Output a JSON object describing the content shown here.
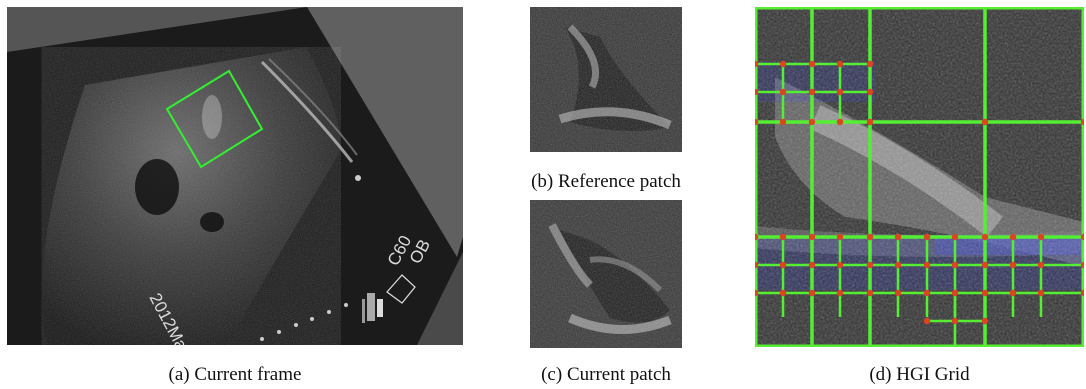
{
  "figure": {
    "captions": {
      "a": "(a) Current frame",
      "b": "(b) Reference patch",
      "c": "(c) Current patch",
      "d": "(d) HGI Grid"
    },
    "frame_overlay": {
      "probe_label": "C60",
      "preset_label": "OB",
      "date_text": "2012Mar"
    },
    "colors": {
      "roi_box": "#33ee33",
      "grid_line": "#55ee33",
      "grid_node": "#dd4422",
      "noise_blue": "#2233ff"
    }
  }
}
